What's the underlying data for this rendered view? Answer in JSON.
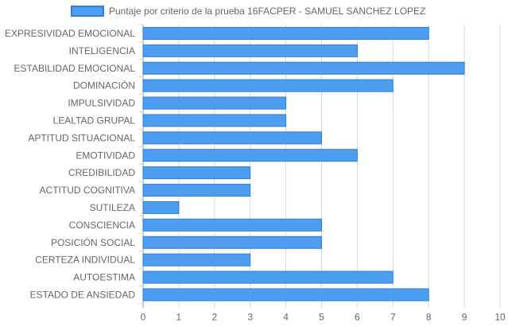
{
  "chart_data": {
    "type": "bar",
    "orientation": "horizontal",
    "categories": [
      "EXPRESIVIDAD EMOCIONAL",
      "INTELIGENCIA",
      "ESTABILIDAD EMOCIONAL",
      "DOMINACIÓN",
      "IMPULSIVIDAD",
      "LEALTAD GRUPAL",
      "APTITUD SITUACIONAL",
      "EMOTIVIDAD",
      "CREDIBILIDAD",
      "ACTITUD COGNITIVA",
      "SUTILEZA",
      "CONSCIENCIA",
      "POSICIÓN SOCIAL",
      "CERTEZA INDIVIDUAL",
      "AUTOESTIMA",
      "ESTADO DE ANSIEDAD"
    ],
    "series": [
      {
        "name": "Puntaje por criterio de la prueba 16FACPER - SAMUEL SANCHEZ LOPEZ",
        "values": [
          8,
          6,
          9,
          7,
          4,
          4,
          5,
          6,
          3,
          3,
          1,
          5,
          5,
          3,
          7,
          8
        ],
        "color": "#4d9ef0",
        "border_color": "#2b7fd8"
      }
    ],
    "x_ticks": [
      "0",
      "1",
      "2",
      "3",
      "4",
      "5",
      "6",
      "7",
      "8",
      "9",
      "10"
    ],
    "xlim": [
      0,
      10
    ],
    "grid": true,
    "legend_position": "top"
  }
}
